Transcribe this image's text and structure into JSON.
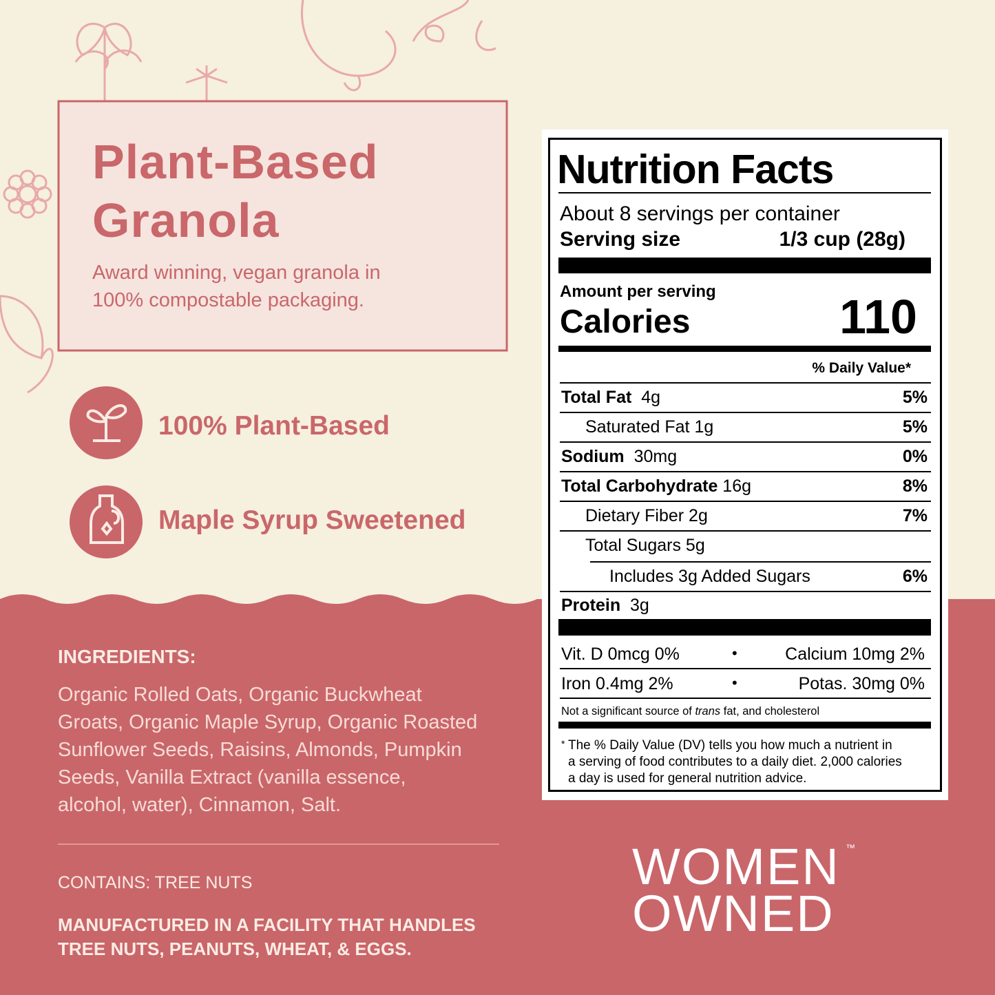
{
  "header": {
    "title_line1": "Plant-Based",
    "title_line2": "Granola",
    "subtitle_line1": "Award winning, vegan granola in",
    "subtitle_line2": "100% compostable packaging."
  },
  "features": [
    {
      "label": "100% Plant-Based"
    },
    {
      "label": "Maple Syrup Sweetened"
    }
  ],
  "ingredients": {
    "heading": "INGREDIENTS:",
    "lines": [
      "Organic Rolled Oats, Organic Buckwheat",
      "Groats, Organic Maple Syrup, Organic Roasted",
      "Sunflower Seeds, Raisins, Almonds, Pumpkin",
      "Seeds, Vanilla Extract (vanilla essence,",
      "alcohol, water), Cinnamon, Salt."
    ]
  },
  "allergens": {
    "contains": "CONTAINS: TREE NUTS",
    "facility_lines": [
      "MANUFACTURED IN A FACILITY THAT HANDLES",
      "TREE NUTS, PEANUTS, WHEAT, & EGGS."
    ]
  },
  "nutrition": {
    "title": "Nutrition Facts",
    "servings": "About 8 servings per container",
    "serving_size_label": "Serving size",
    "serving_size": "1/3 cup (28g)",
    "amount_label": "Amount per serving",
    "calories_label": "Calories",
    "calories": 110,
    "dv_header": "% Daily Value*",
    "rows": [
      {
        "name": "Total Fat",
        "amount": "4g",
        "dv": "5%"
      },
      {
        "name": "Saturated Fat",
        "amount": "1g",
        "dv": "5%"
      },
      {
        "name": "Sodium",
        "amount": "30mg",
        "dv": "0%"
      },
      {
        "name": "Total Carbohydrate",
        "amount": "16g",
        "dv": "8%"
      },
      {
        "name": "Dietary Fiber",
        "amount": "2g",
        "dv": "7%"
      },
      {
        "name": "Total Sugars",
        "amount": "5g"
      },
      {
        "name": "Includes 3g Added Sugars",
        "dv": "6%"
      },
      {
        "name": "Protein",
        "amount": "3g"
      }
    ],
    "vitamins": [
      [
        "Vit. D 0mcg 0%",
        "Calcium 10mg 2%"
      ],
      [
        "Iron 0.4mg 2%",
        "Potas. 30mg 0%"
      ]
    ],
    "separator": "•",
    "note": [
      "Not a significant source of",
      "trans",
      "fat, and cholesterol"
    ],
    "footnote_mark": "*",
    "footnote_lines": [
      "The % Daily Value (DV) tells you how much a nutrient in",
      "a serving of food contributes to a daily diet. 2,000 calories",
      "a day is used for general nutrition advice."
    ]
  },
  "badge": {
    "line1": "WOMEN",
    "line2": "OWNED",
    "mark": "™"
  }
}
